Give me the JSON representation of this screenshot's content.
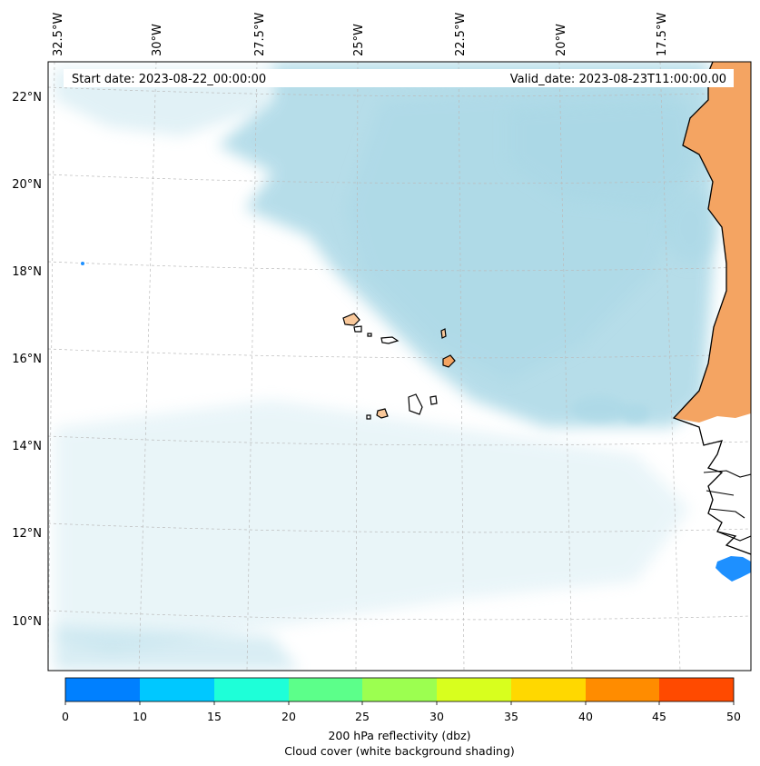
{
  "map": {
    "header": {
      "start_date": "Start date: 2023-08-22_00:00:00",
      "valid_date": "Valid_date: 2023-08-23T11:00:00.00"
    },
    "lon_labels": [
      "32.5°W",
      "30°W",
      "27.5°W",
      "25°W",
      "22.5°W",
      "20°W",
      "17.5°W"
    ],
    "lat_labels": [
      "22°N",
      "20°N",
      "18°N",
      "16°N",
      "14°N",
      "12°N",
      "10°N"
    ],
    "colorbar": {
      "ticks": [
        "0",
        "10",
        "15",
        "20",
        "25",
        "30",
        "35",
        "40",
        "45",
        "50"
      ],
      "colors": [
        "#0080ff",
        "#00c8ff",
        "#1effd8",
        "#5cff8a",
        "#9cff50",
        "#d8ff1e",
        "#ffd800",
        "#ff8c00",
        "#ff4a00"
      ],
      "label_line1": "200 hPa reflectivity (dbz)",
      "label_line2": "Cloud cover (white background shading)"
    },
    "colors": {
      "cloud": "#aad8e6",
      "land_shading": "#f4a462",
      "echo": "#1e90ff",
      "gridline": "#bbbbbb",
      "coastline": "#000000"
    }
  }
}
